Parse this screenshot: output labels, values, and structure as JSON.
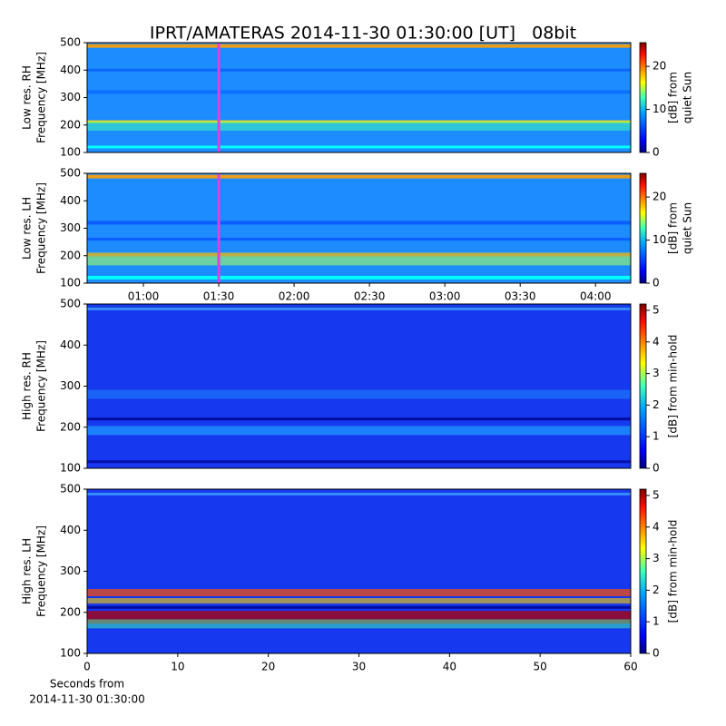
{
  "chart_data": [
    {
      "type": "spectrogram",
      "title": "IPRT/AMATERAS 2014-11-30 01:30:00 [UT]   08bit",
      "ylabel": [
        "Low res. RH",
        "Frequency [MHz]"
      ],
      "ylim": [
        100,
        500
      ],
      "yticks": [
        100,
        200,
        300,
        400,
        500
      ],
      "xlim": [
        37.6,
        254
      ],
      "highlight_x": 90,
      "highlight_color": "#e040e0",
      "colorbar": {
        "label": [
          "[dB] from",
          "quiet Sun"
        ],
        "lim": [
          0,
          25.5
        ],
        "ticks": [
          0,
          10,
          20
        ]
      }
    },
    {
      "type": "spectrogram",
      "ylabel": [
        "Low res. LH",
        "Frequency [MHz]"
      ],
      "ylim": [
        100,
        500
      ],
      "yticks": [
        100,
        200,
        300,
        400,
        500
      ],
      "xlim": [
        37.6,
        254
      ],
      "highlight_x": 90,
      "highlight_color": "#e040e0",
      "xticks": [
        {
          "value": 60,
          "label": "01:00"
        },
        {
          "value": 90,
          "label": "01:30"
        },
        {
          "value": 120,
          "label": "02:00"
        },
        {
          "value": 150,
          "label": "02:30"
        },
        {
          "value": 180,
          "label": "03:00"
        },
        {
          "value": 210,
          "label": "03:30"
        },
        {
          "value": 240,
          "label": "04:00"
        }
      ],
      "colorbar": {
        "label": [
          "[dB] from",
          "quiet Sun"
        ],
        "lim": [
          0,
          25.5
        ],
        "ticks": [
          0,
          10,
          20
        ]
      }
    },
    {
      "type": "spectrogram",
      "ylabel": [
        "High res. RH",
        "Frequency [MHz]"
      ],
      "ylim": [
        100,
        500
      ],
      "yticks": [
        100,
        200,
        300,
        400,
        500
      ],
      "xlim": [
        0,
        60
      ],
      "colorbar": {
        "label": [
          "[dB] from min-hold"
        ],
        "lim": [
          0,
          5.2
        ],
        "ticks": [
          0,
          1,
          2,
          3,
          4,
          5
        ]
      }
    },
    {
      "type": "spectrogram",
      "ylabel": [
        "High res. LH",
        "Frequency [MHz]"
      ],
      "ylim": [
        100,
        500
      ],
      "yticks": [
        100,
        200,
        300,
        400,
        500
      ],
      "xlim": [
        0,
        60
      ],
      "xticks": [
        0,
        10,
        20,
        30,
        40,
        50,
        60
      ],
      "xlabel": [
        "Seconds from",
        "2014-11-30 01:30:00"
      ],
      "colorbar": {
        "label": [
          "[dB] from min-hold"
        ],
        "lim": [
          0,
          5.2
        ],
        "ticks": [
          0,
          1,
          2,
          3,
          4,
          5
        ]
      }
    }
  ]
}
